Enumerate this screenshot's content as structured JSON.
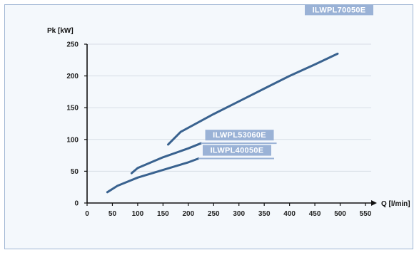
{
  "chart_data": {
    "type": "line",
    "title": "",
    "xlabel": "Q [l/min]",
    "ylabel": "Pk [kW]",
    "xlim": [
      0,
      550
    ],
    "ylim": [
      0,
      250
    ],
    "x_ticks": [
      "0",
      "50",
      "100",
      "150",
      "200",
      "250",
      "300",
      "350",
      "400",
      "450",
      "500",
      "550"
    ],
    "y_ticks": [
      "0",
      "50",
      "100",
      "150",
      "200",
      "250"
    ],
    "grid": "y-major",
    "series": [
      {
        "name": "ILWPL70050E",
        "color": "#39628f",
        "points": [
          [
            160,
            92
          ],
          [
            185,
            112
          ],
          [
            250,
            140
          ],
          [
            300,
            160
          ],
          [
            350,
            180
          ],
          [
            400,
            200
          ],
          [
            450,
            218
          ],
          [
            495,
            235
          ]
        ]
      },
      {
        "name": "ILWPL53060E",
        "color": "#39628f",
        "points": [
          [
            88,
            47
          ],
          [
            100,
            55
          ],
          [
            150,
            72
          ],
          [
            200,
            86
          ],
          [
            225,
            94
          ]
        ]
      },
      {
        "name": "ILWPL40050E",
        "color": "#39628f",
        "points": [
          [
            40,
            17
          ],
          [
            60,
            27
          ],
          [
            100,
            40
          ],
          [
            150,
            52
          ],
          [
            200,
            64
          ],
          [
            220,
            70
          ]
        ]
      }
    ]
  }
}
